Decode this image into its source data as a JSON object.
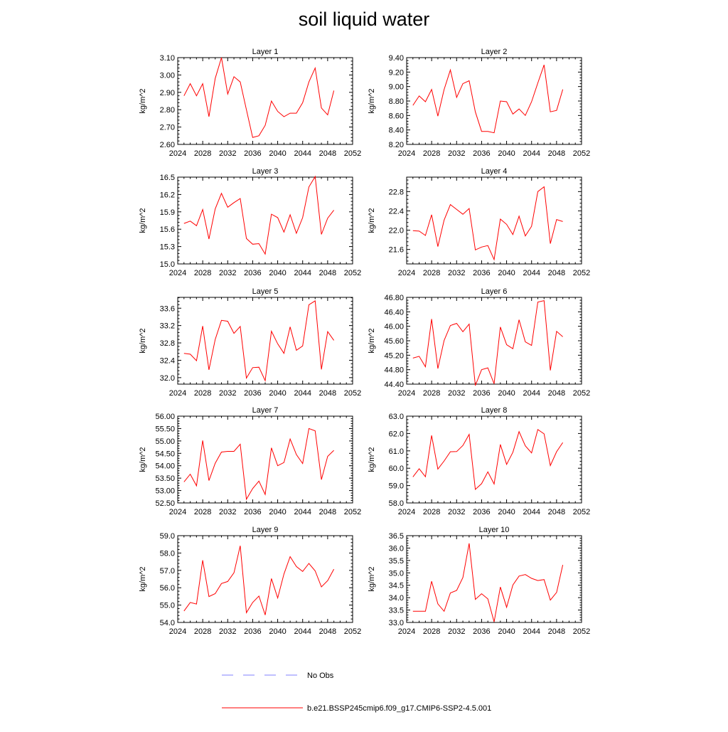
{
  "figure_title": "soil liquid water",
  "legend": {
    "obs_label": "No Obs",
    "model_label": "b.e21.BSSP245cmip6.f09_g17.CMIP6-SSP2-4.5.001",
    "obs_color": "#8080ff",
    "model_color": "#ff0000"
  },
  "chart_data": [
    {
      "type": "line",
      "title": "Layer 1",
      "ylabel": "kg/m^2",
      "xlim": [
        2024,
        2052
      ],
      "xticks": [
        2024,
        2028,
        2032,
        2036,
        2040,
        2044,
        2048,
        2052
      ],
      "ylim": [
        2.6,
        3.1
      ],
      "yticks": [
        "2.60",
        "2.70",
        "2.80",
        "2.90",
        "3.00",
        "3.10"
      ],
      "x": [
        2025,
        2026,
        2027,
        2028,
        2029,
        2030,
        2031,
        2032,
        2033,
        2034,
        2035,
        2036,
        2037,
        2038,
        2039,
        2040,
        2041,
        2042,
        2043,
        2044,
        2045,
        2046,
        2047,
        2048,
        2049
      ],
      "series": [
        {
          "values": [
            2.88,
            2.95,
            2.88,
            2.95,
            2.76,
            2.98,
            3.1,
            2.89,
            2.99,
            2.96,
            2.8,
            2.64,
            2.65,
            2.71,
            2.85,
            2.79,
            2.76,
            2.78,
            2.78,
            2.84,
            2.96,
            3.04,
            2.81,
            2.77,
            2.91
          ],
          "color": "#ff0000"
        }
      ]
    },
    {
      "type": "line",
      "title": "Layer 2",
      "ylabel": "kg/m^2",
      "xlim": [
        2024,
        2052
      ],
      "xticks": [
        2024,
        2028,
        2032,
        2036,
        2040,
        2044,
        2048,
        2052
      ],
      "ylim": [
        8.2,
        9.4
      ],
      "yticks": [
        "8.20",
        "8.40",
        "8.60",
        "8.80",
        "9.00",
        "9.20",
        "9.40"
      ],
      "x": [
        2025,
        2026,
        2027,
        2028,
        2029,
        2030,
        2031,
        2032,
        2033,
        2034,
        2035,
        2036,
        2037,
        2038,
        2039,
        2040,
        2041,
        2042,
        2043,
        2044,
        2045,
        2046,
        2047,
        2048,
        2049
      ],
      "series": [
        {
          "values": [
            8.74,
            8.87,
            8.79,
            8.96,
            8.59,
            8.96,
            9.23,
            8.85,
            9.04,
            9.08,
            8.65,
            8.38,
            8.38,
            8.36,
            8.8,
            8.79,
            8.62,
            8.69,
            8.6,
            8.79,
            9.05,
            9.3,
            8.65,
            8.67,
            8.96
          ],
          "color": "#ff0000"
        }
      ]
    },
    {
      "type": "line",
      "title": "Layer 3",
      "ylabel": "kg/m^2",
      "xlim": [
        2024,
        2052
      ],
      "xticks": [
        2024,
        2028,
        2032,
        2036,
        2040,
        2044,
        2048,
        2052
      ],
      "ylim": [
        15.0,
        16.5
      ],
      "yticks": [
        "15.0",
        "15.3",
        "15.6",
        "15.9",
        "16.2",
        "16.5"
      ],
      "x": [
        2025,
        2026,
        2027,
        2028,
        2029,
        2030,
        2031,
        2032,
        2033,
        2034,
        2035,
        2036,
        2037,
        2038,
        2039,
        2040,
        2041,
        2042,
        2043,
        2044,
        2045,
        2046,
        2047,
        2048,
        2049
      ],
      "series": [
        {
          "values": [
            15.7,
            15.74,
            15.66,
            15.94,
            15.43,
            15.95,
            16.22,
            15.98,
            16.06,
            16.13,
            15.44,
            15.34,
            15.35,
            15.17,
            15.86,
            15.8,
            15.55,
            15.85,
            15.53,
            15.8,
            16.33,
            16.51,
            15.51,
            15.79,
            15.93
          ],
          "color": "#ff0000"
        }
      ]
    },
    {
      "type": "line",
      "title": "Layer 4",
      "ylabel": "kg/m^2",
      "xlim": [
        2024,
        2052
      ],
      "xticks": [
        2024,
        2028,
        2032,
        2036,
        2040,
        2044,
        2048,
        2052
      ],
      "ylim": [
        21.3,
        23.1
      ],
      "yticks": [
        "21.6",
        "22.0",
        "22.4",
        "22.8"
      ],
      "x": [
        2025,
        2026,
        2027,
        2028,
        2029,
        2030,
        2031,
        2032,
        2033,
        2034,
        2035,
        2036,
        2037,
        2038,
        2039,
        2040,
        2041,
        2042,
        2043,
        2044,
        2045,
        2046,
        2047,
        2048,
        2049
      ],
      "series": [
        {
          "values": [
            21.99,
            21.98,
            21.89,
            22.32,
            21.66,
            22.21,
            22.53,
            22.43,
            22.33,
            22.45,
            21.59,
            21.65,
            21.68,
            21.39,
            22.23,
            22.12,
            21.91,
            22.29,
            21.88,
            22.08,
            22.8,
            22.9,
            21.72,
            22.22,
            22.18
          ],
          "color": "#ff0000"
        }
      ]
    },
    {
      "type": "line",
      "title": "Layer 5",
      "ylabel": "kg/m^2",
      "xlim": [
        2024,
        2052
      ],
      "xticks": [
        2024,
        2028,
        2032,
        2036,
        2040,
        2044,
        2048,
        2052
      ],
      "ylim": [
        31.85,
        33.85
      ],
      "yticks": [
        "32.0",
        "32.4",
        "32.8",
        "33.2",
        "33.6"
      ],
      "x": [
        2025,
        2026,
        2027,
        2028,
        2029,
        2030,
        2031,
        2032,
        2033,
        2034,
        2035,
        2036,
        2037,
        2038,
        2039,
        2040,
        2041,
        2042,
        2043,
        2044,
        2045,
        2046,
        2047,
        2048,
        2049
      ],
      "series": [
        {
          "values": [
            32.56,
            32.54,
            32.39,
            33.19,
            32.18,
            32.88,
            33.32,
            33.3,
            33.02,
            33.18,
            31.99,
            32.23,
            32.24,
            31.93,
            33.07,
            32.78,
            32.56,
            33.17,
            32.63,
            32.73,
            33.68,
            33.77,
            32.19,
            33.06,
            32.86
          ],
          "color": "#ff0000"
        }
      ]
    },
    {
      "type": "line",
      "title": "Layer 6",
      "ylabel": "kg/m^2",
      "xlim": [
        2024,
        2052
      ],
      "xticks": [
        2024,
        2028,
        2032,
        2036,
        2040,
        2044,
        2048,
        2052
      ],
      "ylim": [
        44.4,
        46.8
      ],
      "yticks": [
        "44.40",
        "44.80",
        "45.20",
        "45.60",
        "46.00",
        "46.40",
        "46.80"
      ],
      "x": [
        2025,
        2026,
        2027,
        2028,
        2029,
        2030,
        2031,
        2032,
        2033,
        2034,
        2035,
        2036,
        2037,
        2038,
        2039,
        2040,
        2041,
        2042,
        2043,
        2044,
        2045,
        2046,
        2047,
        2048,
        2049
      ],
      "series": [
        {
          "values": [
            45.12,
            45.17,
            44.88,
            46.2,
            44.83,
            45.61,
            46.02,
            46.08,
            45.85,
            46.06,
            44.36,
            44.8,
            44.85,
            44.41,
            45.98,
            45.49,
            45.38,
            46.18,
            45.57,
            45.47,
            46.67,
            46.71,
            44.78,
            45.86,
            45.71
          ],
          "color": "#ff0000"
        }
      ]
    },
    {
      "type": "line",
      "title": "Layer 7",
      "ylabel": "kg/m^2",
      "xlim": [
        2024,
        2052
      ],
      "xticks": [
        2024,
        2028,
        2032,
        2036,
        2040,
        2044,
        2048,
        2052
      ],
      "ylim": [
        52.5,
        56.0
      ],
      "yticks": [
        "52.50",
        "53.00",
        "53.50",
        "54.00",
        "54.50",
        "55.00",
        "55.50",
        "56.00"
      ],
      "x": [
        2025,
        2026,
        2027,
        2028,
        2029,
        2030,
        2031,
        2032,
        2033,
        2034,
        2035,
        2036,
        2037,
        2038,
        2039,
        2040,
        2041,
        2042,
        2043,
        2044,
        2045,
        2046,
        2047,
        2048,
        2049
      ],
      "series": [
        {
          "values": [
            53.35,
            53.66,
            53.19,
            55.02,
            53.4,
            54.1,
            54.55,
            54.58,
            54.58,
            54.87,
            52.65,
            53.08,
            53.38,
            52.84,
            54.72,
            54.0,
            54.13,
            55.08,
            54.45,
            54.09,
            55.5,
            55.41,
            53.44,
            54.38,
            54.62
          ],
          "color": "#ff0000"
        }
      ]
    },
    {
      "type": "line",
      "title": "Layer 8",
      "ylabel": "kg/m^2",
      "xlim": [
        2024,
        2052
      ],
      "xticks": [
        2024,
        2028,
        2032,
        2036,
        2040,
        2044,
        2048,
        2052
      ],
      "ylim": [
        58.0,
        63.0
      ],
      "yticks": [
        "58.0",
        "59.0",
        "60.0",
        "61.0",
        "62.0",
        "63.0"
      ],
      "x": [
        2025,
        2026,
        2027,
        2028,
        2029,
        2030,
        2031,
        2032,
        2033,
        2034,
        2035,
        2036,
        2037,
        2038,
        2039,
        2040,
        2041,
        2042,
        2043,
        2044,
        2045,
        2046,
        2047,
        2048,
        2049
      ],
      "series": [
        {
          "values": [
            59.5,
            59.97,
            59.51,
            61.89,
            59.95,
            60.42,
            60.95,
            60.96,
            61.31,
            61.95,
            58.78,
            59.11,
            59.79,
            59.09,
            61.37,
            60.22,
            60.92,
            62.11,
            61.29,
            60.88,
            62.23,
            61.98,
            60.15,
            60.95,
            61.48
          ],
          "color": "#ff0000"
        }
      ]
    },
    {
      "type": "line",
      "title": "Layer 9",
      "ylabel": "kg/m^2",
      "xlim": [
        2024,
        2052
      ],
      "xticks": [
        2024,
        2028,
        2032,
        2036,
        2040,
        2044,
        2048,
        2052
      ],
      "ylim": [
        54.0,
        59.0
      ],
      "yticks": [
        "54.0",
        "55.0",
        "56.0",
        "57.0",
        "58.0",
        "59.0"
      ],
      "x": [
        2025,
        2026,
        2027,
        2028,
        2029,
        2030,
        2031,
        2032,
        2033,
        2034,
        2035,
        2036,
        2037,
        2038,
        2039,
        2040,
        2041,
        2042,
        2043,
        2044,
        2045,
        2046,
        2047,
        2048,
        2049
      ],
      "series": [
        {
          "values": [
            54.66,
            55.15,
            55.06,
            57.58,
            55.49,
            55.66,
            56.24,
            56.36,
            56.86,
            58.42,
            54.56,
            55.15,
            55.52,
            54.43,
            56.53,
            55.41,
            56.79,
            57.79,
            57.22,
            56.94,
            57.4,
            56.97,
            56.05,
            56.41,
            57.07
          ],
          "color": "#ff0000"
        }
      ]
    },
    {
      "type": "line",
      "title": "Layer 10",
      "ylabel": "kg/m^2",
      "xlim": [
        2024,
        2052
      ],
      "xticks": [
        2024,
        2028,
        2032,
        2036,
        2040,
        2044,
        2048,
        2052
      ],
      "ylim": [
        33.0,
        36.5
      ],
      "yticks": [
        "33.0",
        "33.5",
        "34.0",
        "34.5",
        "35.0",
        "35.5",
        "36.0",
        "36.5"
      ],
      "x": [
        2025,
        2026,
        2027,
        2028,
        2029,
        2030,
        2031,
        2032,
        2033,
        2034,
        2035,
        2036,
        2037,
        2038,
        2039,
        2040,
        2041,
        2042,
        2043,
        2044,
        2045,
        2046,
        2047,
        2048,
        2049
      ],
      "series": [
        {
          "values": [
            33.45,
            33.45,
            33.45,
            34.66,
            33.75,
            33.45,
            34.19,
            34.29,
            34.81,
            36.19,
            33.93,
            34.16,
            33.95,
            33.02,
            34.43,
            33.61,
            34.51,
            34.87,
            34.93,
            34.78,
            34.69,
            34.73,
            33.9,
            34.21,
            35.32
          ],
          "color": "#ff0000"
        }
      ]
    }
  ]
}
